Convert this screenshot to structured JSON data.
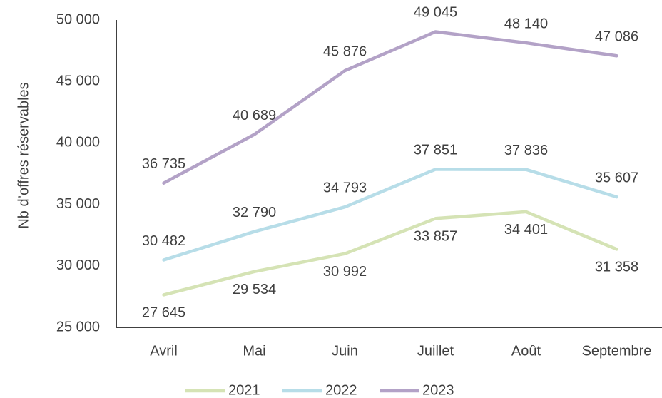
{
  "chart_data": {
    "type": "line",
    "y_label": "Nb d’offres réservables",
    "categories": [
      "Avril",
      "Mai",
      "Juin",
      "Juillet",
      "Août",
      "Septembre"
    ],
    "series": [
      {
        "name": "2021",
        "color": "#d5e3b5",
        "values": [
          27645,
          29534,
          30992,
          33857,
          34401,
          31358
        ],
        "value_labels": [
          "27 645",
          "29 534",
          "30 992",
          "33 857",
          "34 401",
          "31 358"
        ]
      },
      {
        "name": "2022",
        "color": "#b7dde8",
        "values": [
          30482,
          32790,
          34793,
          37851,
          37836,
          35607
        ],
        "value_labels": [
          "30 482",
          "32 790",
          "34 793",
          "37 851",
          "37 836",
          "35 607"
        ]
      },
      {
        "name": "2023",
        "color": "#b3a2c7",
        "values": [
          36735,
          40689,
          45876,
          49045,
          48140,
          47086
        ],
        "value_labels": [
          "36 735",
          "40 689",
          "45 876",
          "49 045",
          "48 140",
          "47 086"
        ]
      }
    ],
    "ylim": [
      25000,
      50000
    ],
    "yticks": [
      {
        "value": 25000,
        "label": "25 000"
      },
      {
        "value": 30000,
        "label": "30 000"
      },
      {
        "value": 35000,
        "label": "35 000"
      },
      {
        "value": 40000,
        "label": "40 000"
      },
      {
        "value": 45000,
        "label": "45 000"
      },
      {
        "value": 50000,
        "label": "50 000"
      }
    ],
    "grid": false
  }
}
